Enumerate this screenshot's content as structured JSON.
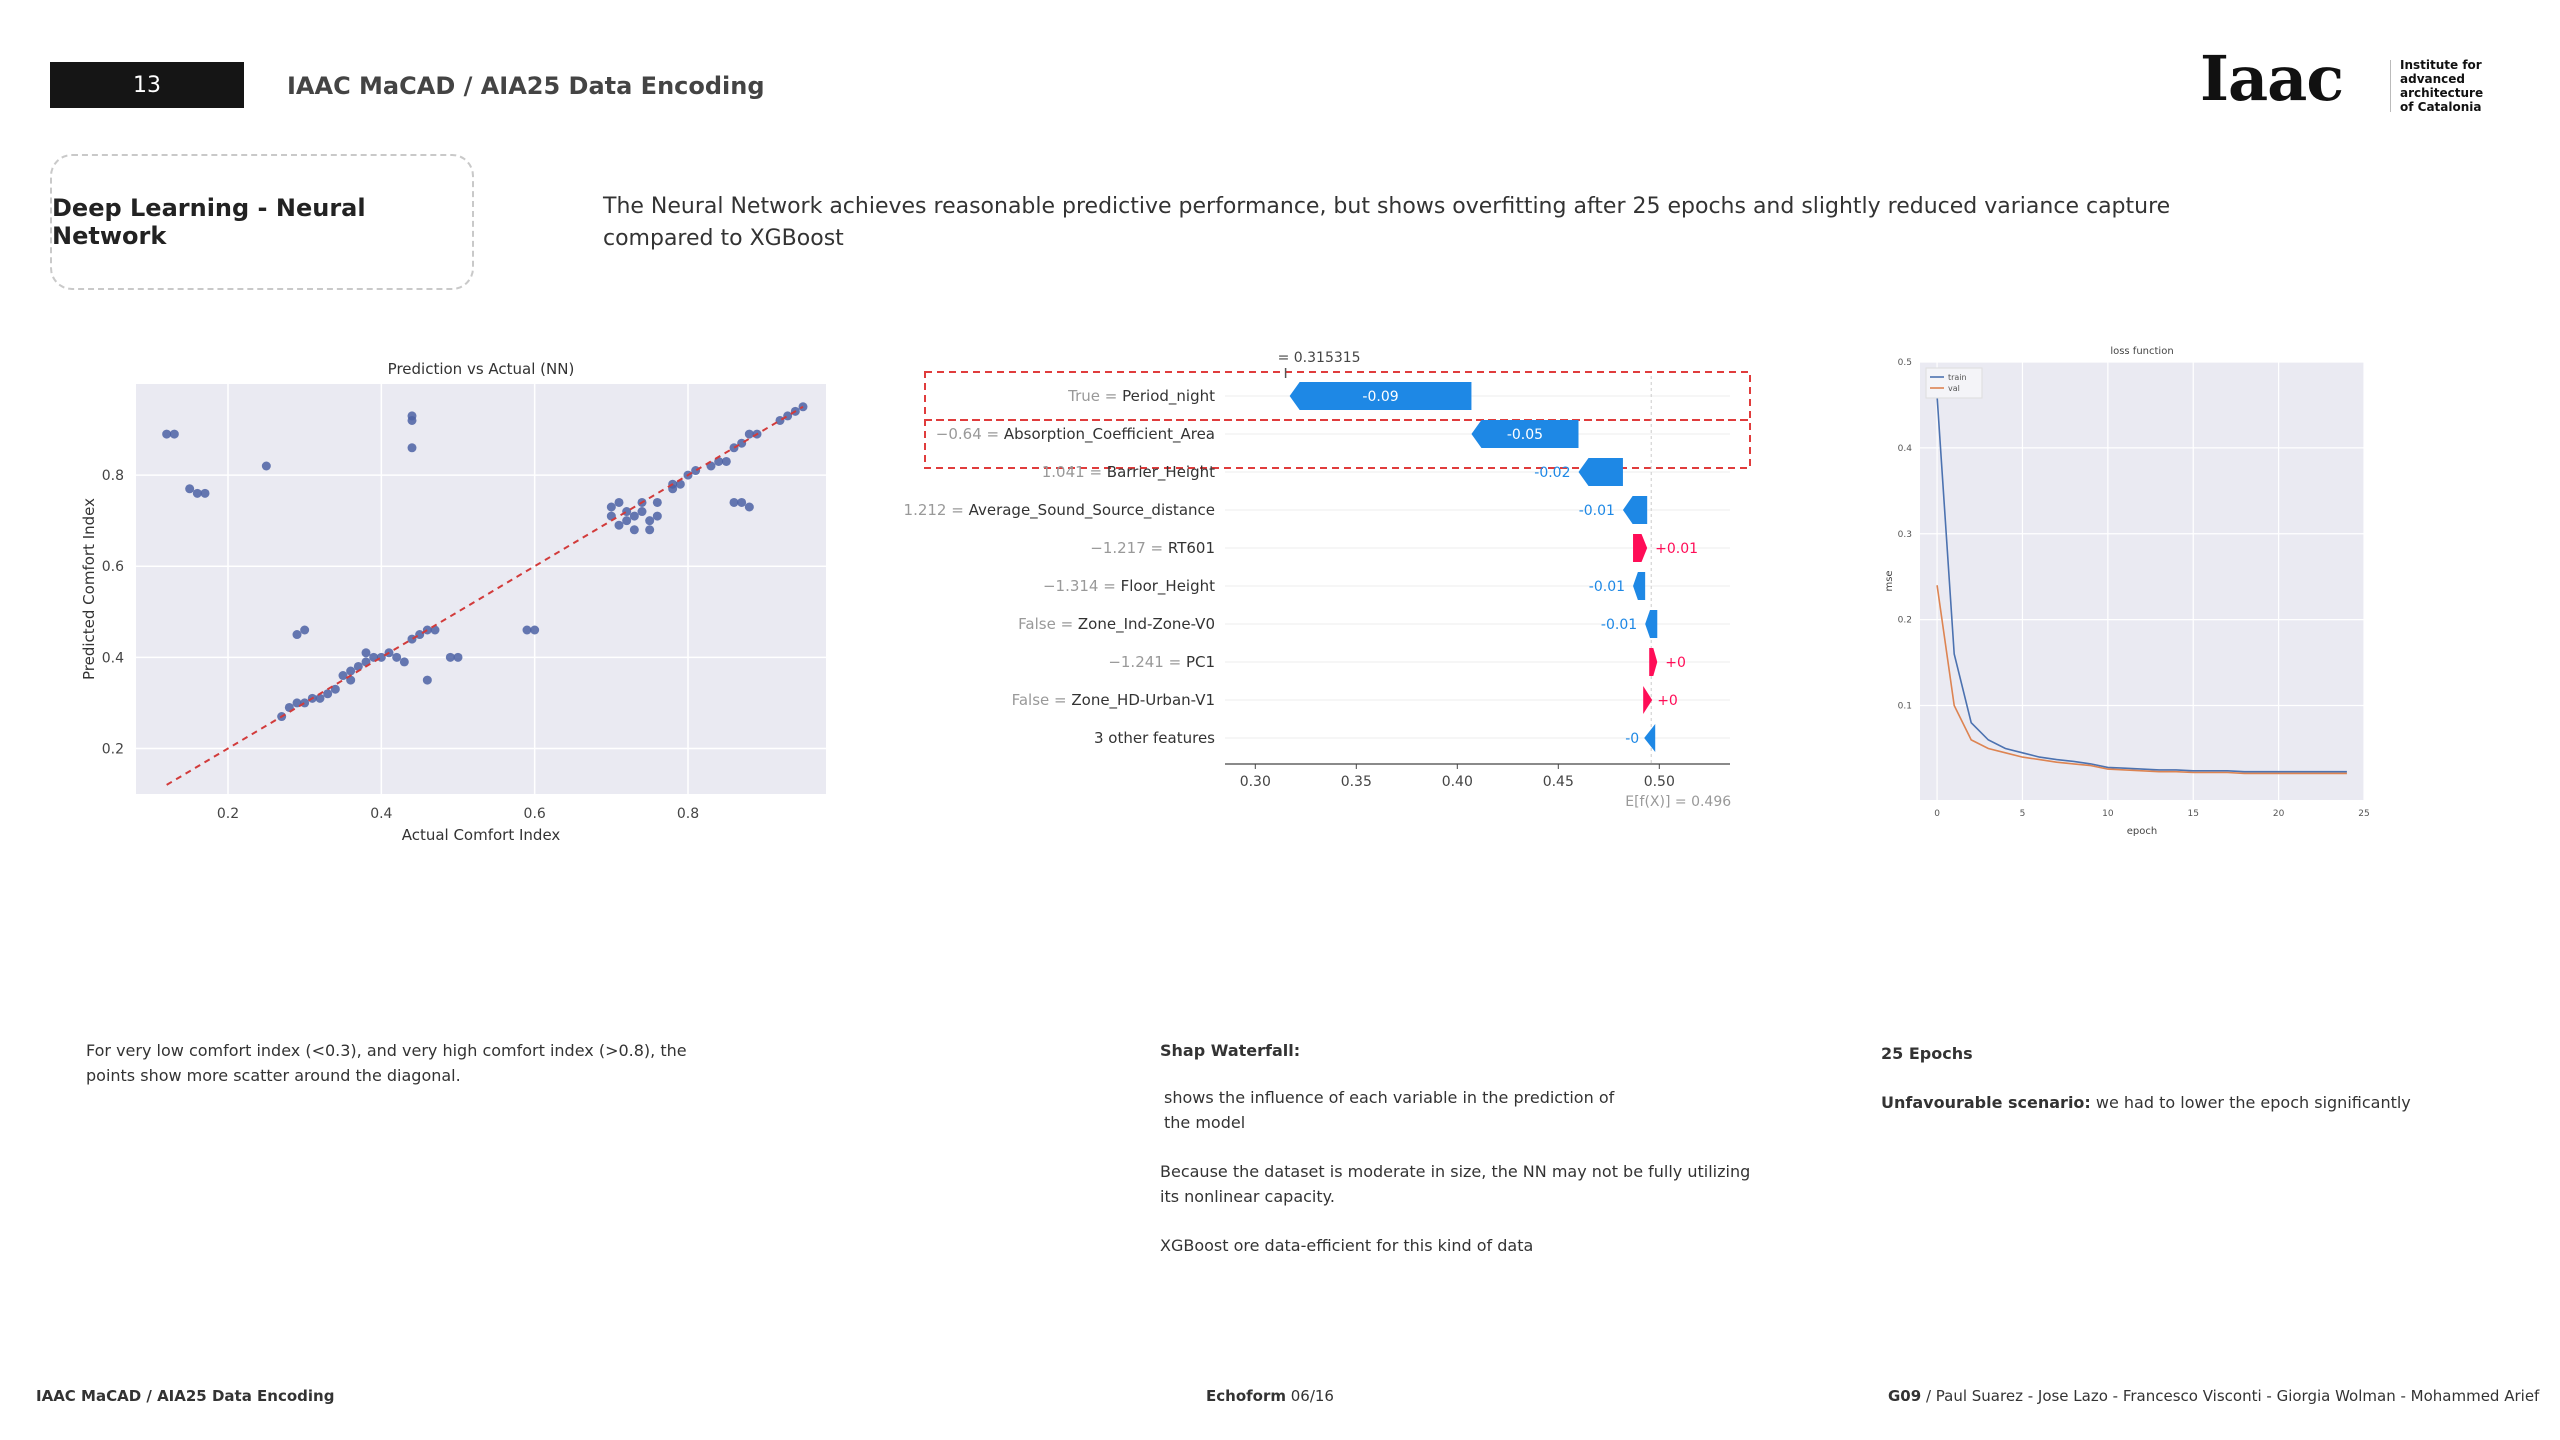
{
  "header": {
    "slide_number": "13",
    "title": "IAAC MaCAD / AIA25 Data Encoding"
  },
  "logo": {
    "mark": "Iaac",
    "institute_lines": [
      "Institute for",
      "advanced",
      "architecture",
      "of Catalonia"
    ]
  },
  "section_title": "Deep Learning - Neural Network",
  "intro_text": "The Neural Network achieves reasonable predictive performance, but shows  overfitting after 25 epochs and slightly reduced variance capture compared to XGBoost",
  "chart_data": [
    {
      "type": "scatter",
      "title": "Prediction vs Actual (NN)",
      "xlabel": "Actual Comfort Index",
      "ylabel": "Predicted Comfort Index",
      "xlim": [
        0.08,
        0.98
      ],
      "ylim": [
        0.1,
        1.0
      ],
      "xticks": [
        0.2,
        0.4,
        0.6,
        0.8
      ],
      "yticks": [
        0.2,
        0.4,
        0.6,
        0.8
      ],
      "diagonal": [
        [
          0.12,
          0.12
        ],
        [
          0.95,
          0.95
        ]
      ],
      "grid": true,
      "points": [
        [
          0.12,
          0.89
        ],
        [
          0.13,
          0.89
        ],
        [
          0.15,
          0.77
        ],
        [
          0.16,
          0.76
        ],
        [
          0.17,
          0.76
        ],
        [
          0.25,
          0.82
        ],
        [
          0.27,
          0.27
        ],
        [
          0.28,
          0.29
        ],
        [
          0.29,
          0.3
        ],
        [
          0.3,
          0.3
        ],
        [
          0.31,
          0.31
        ],
        [
          0.32,
          0.31
        ],
        [
          0.33,
          0.32
        ],
        [
          0.34,
          0.33
        ],
        [
          0.29,
          0.45
        ],
        [
          0.3,
          0.46
        ],
        [
          0.35,
          0.36
        ],
        [
          0.36,
          0.37
        ],
        [
          0.37,
          0.38
        ],
        [
          0.38,
          0.39
        ],
        [
          0.39,
          0.4
        ],
        [
          0.4,
          0.4
        ],
        [
          0.41,
          0.41
        ],
        [
          0.42,
          0.4
        ],
        [
          0.43,
          0.39
        ],
        [
          0.36,
          0.35
        ],
        [
          0.38,
          0.41
        ],
        [
          0.44,
          0.44
        ],
        [
          0.45,
          0.45
        ],
        [
          0.46,
          0.46
        ],
        [
          0.47,
          0.46
        ],
        [
          0.46,
          0.35
        ],
        [
          0.49,
          0.4
        ],
        [
          0.5,
          0.4
        ],
        [
          0.44,
          0.92
        ],
        [
          0.44,
          0.93
        ],
        [
          0.44,
          0.86
        ],
        [
          0.59,
          0.46
        ],
        [
          0.6,
          0.46
        ],
        [
          0.7,
          0.73
        ],
        [
          0.71,
          0.74
        ],
        [
          0.72,
          0.7
        ],
        [
          0.73,
          0.71
        ],
        [
          0.74,
          0.72
        ],
        [
          0.75,
          0.7
        ],
        [
          0.71,
          0.69
        ],
        [
          0.73,
          0.68
        ],
        [
          0.75,
          0.68
        ],
        [
          0.76,
          0.74
        ],
        [
          0.72,
          0.72
        ],
        [
          0.74,
          0.74
        ],
        [
          0.7,
          0.71
        ],
        [
          0.76,
          0.71
        ],
        [
          0.78,
          0.77
        ],
        [
          0.79,
          0.78
        ],
        [
          0.8,
          0.8
        ],
        [
          0.81,
          0.81
        ],
        [
          0.78,
          0.78
        ],
        [
          0.83,
          0.82
        ],
        [
          0.84,
          0.83
        ],
        [
          0.85,
          0.83
        ],
        [
          0.86,
          0.86
        ],
        [
          0.87,
          0.87
        ],
        [
          0.88,
          0.89
        ],
        [
          0.89,
          0.89
        ],
        [
          0.86,
          0.74
        ],
        [
          0.87,
          0.74
        ],
        [
          0.88,
          0.73
        ],
        [
          0.92,
          0.92
        ],
        [
          0.93,
          0.93
        ],
        [
          0.94,
          0.94
        ],
        [
          0.95,
          0.95
        ]
      ]
    },
    {
      "type": "bar",
      "title": "SHAP waterfall",
      "top_label": "= 0.315315",
      "xticks": [
        0.3,
        0.35,
        0.4,
        0.45,
        0.5
      ],
      "xlim": [
        0.285,
        0.535
      ],
      "base_value_label": "E[f(X)] = 0.496",
      "base_value": 0.496,
      "final_value": 0.315,
      "features": [
        {
          "value": "True",
          "name": "Period_night",
          "shap": -0.09,
          "label": "-0.09",
          "start": 0.407,
          "end": 0.317
        },
        {
          "value": "−0.64",
          "name": "Absorption_Coefficient_Area",
          "shap": -0.05,
          "label": "-0.05",
          "start": 0.46,
          "end": 0.407
        },
        {
          "value": "1.041",
          "name": "Barrier_Height",
          "shap": -0.02,
          "label": "-0.02",
          "start": 0.482,
          "end": 0.46
        },
        {
          "value": "1.212",
          "name": "Average_Sound_Source_distance",
          "shap": -0.01,
          "label": "-0.01",
          "start": 0.494,
          "end": 0.482
        },
        {
          "value": "−1.217",
          "name": "RT601",
          "shap": 0.01,
          "label": "+0.01",
          "start": 0.487,
          "end": 0.494
        },
        {
          "value": "−1.314",
          "name": "Floor_Height",
          "shap": -0.01,
          "label": "-0.01",
          "start": 0.493,
          "end": 0.487
        },
        {
          "value": "False",
          "name": "Zone_Ind-Zone-V0",
          "shap": -0.01,
          "label": "-0.01",
          "start": 0.499,
          "end": 0.493
        },
        {
          "value": "−1.241",
          "name": "PC1",
          "shap": 0.0,
          "label": "+0",
          "start": 0.495,
          "end": 0.499
        },
        {
          "value": "False",
          "name": "Zone_HD-Urban-V1",
          "shap": 0.0,
          "label": "+0",
          "start": 0.494,
          "end": 0.495
        },
        {
          "value": "",
          "name": "3 other features",
          "shap": 0.0,
          "label": "-0",
          "start": 0.496,
          "end": 0.494
        }
      ],
      "colors": {
        "negative": "#1e88e5",
        "positive": "#ff0d57",
        "highlight": "#e03c3c"
      }
    },
    {
      "type": "line",
      "title": "loss function",
      "xlabel": "epoch",
      "ylabel": "mse",
      "xlim": [
        -1,
        25
      ],
      "ylim": [
        -0.01,
        0.5
      ],
      "xticks": [
        0,
        5,
        10,
        15,
        20,
        25
      ],
      "yticks": [
        0.1,
        0.2,
        0.3,
        0.4,
        0.5
      ],
      "x": [
        0,
        1,
        2,
        3,
        4,
        5,
        6,
        7,
        8,
        9,
        10,
        11,
        12,
        13,
        14,
        15,
        16,
        17,
        18,
        19,
        20,
        21,
        22,
        23,
        24
      ],
      "series": [
        {
          "name": "train",
          "color": "#4c72b0",
          "values": [
            0.46,
            0.16,
            0.08,
            0.06,
            0.05,
            0.045,
            0.04,
            0.037,
            0.035,
            0.032,
            0.028,
            0.027,
            0.026,
            0.025,
            0.025,
            0.024,
            0.024,
            0.024,
            0.023,
            0.023,
            0.023,
            0.023,
            0.023,
            0.023,
            0.023
          ]
        },
        {
          "name": "val",
          "color": "#dd8452",
          "values": [
            0.24,
            0.1,
            0.06,
            0.05,
            0.045,
            0.04,
            0.037,
            0.034,
            0.032,
            0.03,
            0.026,
            0.025,
            0.024,
            0.023,
            0.023,
            0.022,
            0.022,
            0.022,
            0.021,
            0.021,
            0.021,
            0.021,
            0.021,
            0.021,
            0.021
          ]
        }
      ]
    }
  ],
  "captions": {
    "scatter": "For very low comfort index (<0.3), and very high comfort index (>0.8), the points show more scatter around the diagonal.",
    "shap_title": "Shap Waterfall:",
    "shap_p1": "shows the influence of each variable in the prediction of the model",
    "shap_p2": "Because the dataset is moderate in size, the NN may not be fully utilizing its nonlinear capacity.",
    "shap_p3": "XGBoost ore data-efficient for this kind of data",
    "epochs_title": "25 Epochs",
    "unfav_label": "Unfavourable scenario:",
    "unfav_text": " we had to lower the epoch significantly"
  },
  "footer": {
    "left": "IAAC MaCAD / AIA25 Data Encoding",
    "center_bold": "Echoform",
    "center_rest": " 06/16",
    "right_bold": "G09",
    "right_rest": " / Paul Suarez - Jose Lazo - Francesco Visconti - Giorgia Wolman - Mohammed Arief"
  }
}
